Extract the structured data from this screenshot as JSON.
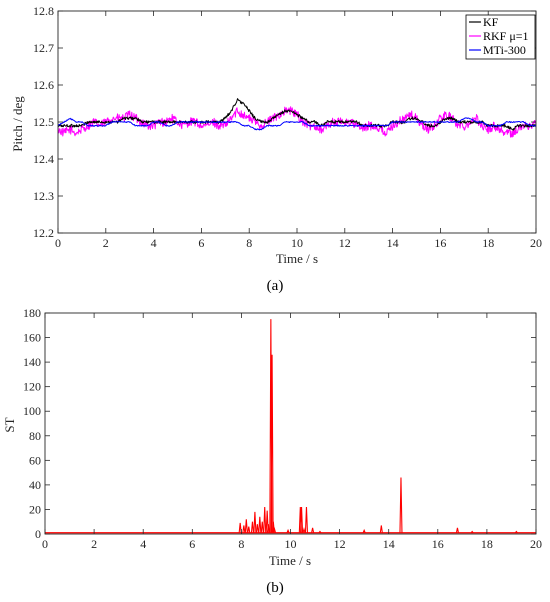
{
  "chart_data": [
    {
      "type": "line",
      "caption": "(a)",
      "xlabel": "Time / s",
      "ylabel": "Pitch / deg",
      "xlim": [
        0,
        20
      ],
      "ylim": [
        12.2,
        12.8
      ],
      "xticks": [
        0,
        2,
        4,
        6,
        8,
        10,
        12,
        14,
        16,
        18,
        20
      ],
      "yticks": [
        12.2,
        12.3,
        12.4,
        12.5,
        12.6,
        12.7,
        12.8
      ],
      "grid": false,
      "legend_position": "top-right",
      "series": [
        {
          "name": "RKF μ=1",
          "color": "#ff00ff",
          "x": [
            0,
            0.25,
            0.5,
            0.75,
            1,
            1.25,
            1.5,
            1.75,
            2,
            2.25,
            2.5,
            2.75,
            3,
            3.25,
            3.5,
            3.75,
            4,
            4.25,
            4.5,
            4.75,
            5,
            5.25,
            5.5,
            5.75,
            6,
            6.25,
            6.5,
            6.75,
            7,
            7.25,
            7.5,
            7.75,
            8,
            8.25,
            8.5,
            8.75,
            9,
            9.25,
            9.5,
            9.75,
            10,
            10.25,
            10.5,
            10.75,
            11,
            11.25,
            11.5,
            11.75,
            12,
            12.25,
            12.5,
            12.75,
            13,
            13.25,
            13.5,
            13.75,
            14,
            14.25,
            14.5,
            14.75,
            15,
            15.25,
            15.5,
            15.75,
            16,
            16.25,
            16.5,
            16.75,
            17,
            17.25,
            17.5,
            17.75,
            18,
            18.25,
            18.5,
            18.75,
            19,
            19.25,
            19.5,
            19.75,
            20
          ],
          "y": [
            12.48,
            12.47,
            12.48,
            12.47,
            12.48,
            12.49,
            12.5,
            12.49,
            12.5,
            12.51,
            12.51,
            12.51,
            12.52,
            12.51,
            12.5,
            12.49,
            12.49,
            12.5,
            12.5,
            12.51,
            12.5,
            12.49,
            12.5,
            12.5,
            12.49,
            12.49,
            12.5,
            12.49,
            12.49,
            12.51,
            12.53,
            12.52,
            12.51,
            12.5,
            12.49,
            12.5,
            12.51,
            12.52,
            12.53,
            12.53,
            12.52,
            12.5,
            12.49,
            12.49,
            12.48,
            12.49,
            12.5,
            12.5,
            12.5,
            12.5,
            12.49,
            12.48,
            12.49,
            12.49,
            12.48,
            12.47,
            12.49,
            12.5,
            12.51,
            12.52,
            12.51,
            12.49,
            12.48,
            12.49,
            12.51,
            12.52,
            12.51,
            12.49,
            12.49,
            12.5,
            12.51,
            12.49,
            12.48,
            12.49,
            12.48,
            12.47,
            12.47,
            12.48,
            12.49,
            12.49,
            12.5
          ]
        },
        {
          "name": "KF",
          "color": "#000000",
          "x": [
            0,
            0.25,
            0.5,
            0.75,
            1,
            1.25,
            1.5,
            1.75,
            2,
            2.25,
            2.5,
            2.75,
            3,
            3.25,
            3.5,
            3.75,
            4,
            4.25,
            4.5,
            4.75,
            5,
            5.25,
            5.5,
            5.75,
            6,
            6.25,
            6.5,
            6.75,
            7,
            7.25,
            7.5,
            7.75,
            8,
            8.25,
            8.5,
            8.75,
            9,
            9.25,
            9.5,
            9.75,
            10,
            10.25,
            10.5,
            10.75,
            11,
            11.25,
            11.5,
            11.75,
            12,
            12.25,
            12.5,
            12.75,
            13,
            13.25,
            13.5,
            13.75,
            14,
            14.25,
            14.5,
            14.75,
            15,
            15.25,
            15.5,
            15.75,
            16,
            16.25,
            16.5,
            16.75,
            17,
            17.25,
            17.5,
            17.75,
            18,
            18.25,
            18.5,
            18.75,
            19,
            19.25,
            19.5,
            19.75,
            20
          ],
          "y": [
            12.49,
            12.49,
            12.49,
            12.49,
            12.49,
            12.5,
            12.5,
            12.5,
            12.5,
            12.5,
            12.5,
            12.51,
            12.51,
            12.51,
            12.5,
            12.5,
            12.5,
            12.5,
            12.5,
            12.5,
            12.5,
            12.5,
            12.5,
            12.5,
            12.5,
            12.5,
            12.5,
            12.5,
            12.51,
            12.53,
            12.56,
            12.55,
            12.53,
            12.51,
            12.5,
            12.5,
            12.51,
            12.52,
            12.53,
            12.53,
            12.52,
            12.51,
            12.5,
            12.5,
            12.49,
            12.5,
            12.5,
            12.5,
            12.5,
            12.5,
            12.5,
            12.49,
            12.49,
            12.49,
            12.49,
            12.49,
            12.5,
            12.5,
            12.5,
            12.51,
            12.51,
            12.5,
            12.49,
            12.49,
            12.5,
            12.51,
            12.51,
            12.5,
            12.5,
            12.5,
            12.5,
            12.5,
            12.49,
            12.49,
            12.49,
            12.49,
            12.48,
            12.49,
            12.49,
            12.49,
            12.49
          ]
        },
        {
          "name": "MTi-300",
          "color": "#0000ff",
          "x": [
            0,
            0.25,
            0.5,
            0.75,
            1,
            1.25,
            1.5,
            1.75,
            2,
            2.25,
            2.5,
            2.75,
            3,
            3.25,
            3.5,
            3.75,
            4,
            4.25,
            4.5,
            4.75,
            5,
            5.25,
            5.5,
            5.75,
            6,
            6.25,
            6.5,
            6.75,
            7,
            7.25,
            7.5,
            7.75,
            8,
            8.25,
            8.5,
            8.75,
            9,
            9.25,
            9.5,
            9.75,
            10,
            10.25,
            10.5,
            10.75,
            11,
            11.25,
            11.5,
            11.75,
            12,
            12.25,
            12.5,
            12.75,
            13,
            13.25,
            13.5,
            13.75,
            14,
            14.25,
            14.5,
            14.75,
            15,
            15.25,
            15.5,
            15.75,
            16,
            16.25,
            16.5,
            16.75,
            17,
            17.25,
            17.5,
            17.75,
            18,
            18.25,
            18.5,
            18.75,
            19,
            19.25,
            19.5,
            19.75,
            20
          ],
          "y": [
            12.49,
            12.5,
            12.51,
            12.5,
            12.5,
            12.49,
            12.49,
            12.49,
            12.49,
            12.5,
            12.5,
            12.5,
            12.5,
            12.49,
            12.49,
            12.49,
            12.5,
            12.5,
            12.49,
            12.49,
            12.5,
            12.5,
            12.5,
            12.5,
            12.5,
            12.5,
            12.5,
            12.5,
            12.5,
            12.5,
            12.5,
            12.49,
            12.49,
            12.48,
            12.48,
            12.49,
            12.49,
            12.49,
            12.5,
            12.5,
            12.5,
            12.5,
            12.49,
            12.49,
            12.49,
            12.49,
            12.49,
            12.49,
            12.49,
            12.49,
            12.49,
            12.49,
            12.49,
            12.49,
            12.49,
            12.49,
            12.5,
            12.5,
            12.5,
            12.5,
            12.5,
            12.5,
            12.5,
            12.5,
            12.5,
            12.5,
            12.5,
            12.5,
            12.51,
            12.51,
            12.5,
            12.5,
            12.49,
            12.49,
            12.49,
            12.5,
            12.5,
            12.5,
            12.5,
            12.49,
            12.49
          ]
        }
      ]
    },
    {
      "type": "line",
      "caption": "(b)",
      "xlabel": "Time / s",
      "ylabel": "ST",
      "xlim": [
        0,
        20
      ],
      "ylim": [
        0,
        180
      ],
      "xticks": [
        0,
        2,
        4,
        6,
        8,
        10,
        12,
        14,
        16,
        18,
        20
      ],
      "yticks": [
        0,
        20,
        40,
        60,
        80,
        100,
        120,
        140,
        160,
        180
      ],
      "grid": false,
      "baseline": 1,
      "series": [
        {
          "color": "#ff0000",
          "spikes_x": [
            7.95,
            8.1,
            8.2,
            8.3,
            8.45,
            8.55,
            8.65,
            8.75,
            8.85,
            8.95,
            9.05,
            9.1,
            9.2,
            9.25,
            9.3,
            9.35,
            9.9,
            10.4,
            10.45,
            10.55,
            10.65,
            10.9,
            11.2,
            13.0,
            13.7,
            14.5,
            16.8,
            17.4,
            19.2
          ],
          "spikes_y": [
            9,
            7,
            12,
            6,
            10,
            18,
            8,
            14,
            10,
            22,
            19,
            8,
            175,
            146,
            10,
            4,
            3,
            22,
            22,
            4,
            22,
            5,
            2,
            3,
            7,
            46,
            5,
            2,
            2
          ]
        }
      ]
    }
  ]
}
